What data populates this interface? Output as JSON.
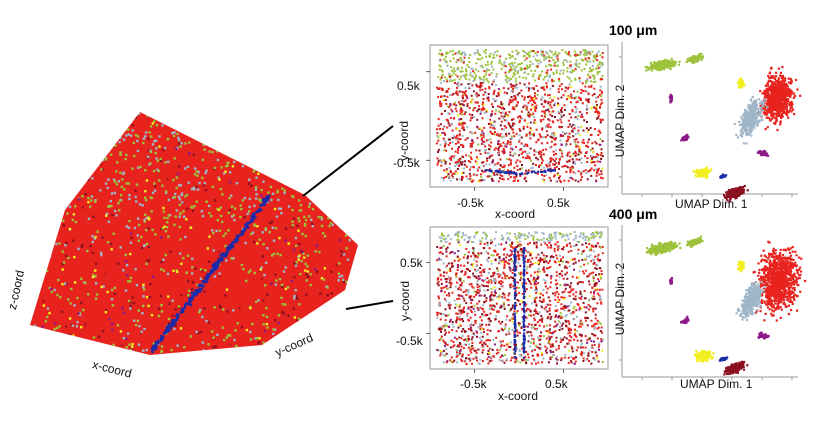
{
  "palette": {
    "red": "#e8231e",
    "dark_red": "#8a1020",
    "yellow_green": "#9cc23a",
    "light_blue": "#9fb6c8",
    "yellow": "#f2ee1f",
    "purple": "#8c1a86",
    "blue": "#1a2aa8"
  },
  "volume_panel": {
    "x_label": "x-coord",
    "y_label": "y-coord",
    "z_label": "z-coord"
  },
  "chart_data": [
    {
      "type": "scatter",
      "name": "slice-top",
      "xlabel": "x-coord",
      "ylabel": "y-coord",
      "x_ticks": [
        "-0.5k",
        "0.5k"
      ],
      "y_ticks": [
        "0.5k",
        "-0.5k"
      ],
      "x_tick_values": [
        -500,
        500
      ],
      "y_tick_values": [
        500,
        -500
      ],
      "xlim": [
        -1000,
        1000
      ],
      "ylim": [
        -800,
        800
      ],
      "grid": false
    },
    {
      "type": "scatter",
      "name": "slice-bottom",
      "xlabel": "x-coord",
      "ylabel": "y-coord",
      "x_ticks": [
        "-0.5k",
        "0.5k"
      ],
      "y_ticks": [
        "0.5k",
        "-0.5k"
      ],
      "x_tick_values": [
        -500,
        500
      ],
      "y_tick_values": [
        500,
        -500
      ],
      "xlim": [
        -1000,
        1000
      ],
      "ylim": [
        -1000,
        1000
      ],
      "grid": false
    },
    {
      "type": "scatter",
      "name": "umap-100",
      "title": "100 μm",
      "xlabel": "UMAP Dim. 1",
      "ylabel": "UMAP Dim. 2",
      "grid": false
    },
    {
      "type": "scatter",
      "name": "umap-400",
      "title": "400 μm",
      "xlabel": "UMAP Dim. 1",
      "ylabel": "UMAP Dim. 2",
      "grid": false
    }
  ]
}
